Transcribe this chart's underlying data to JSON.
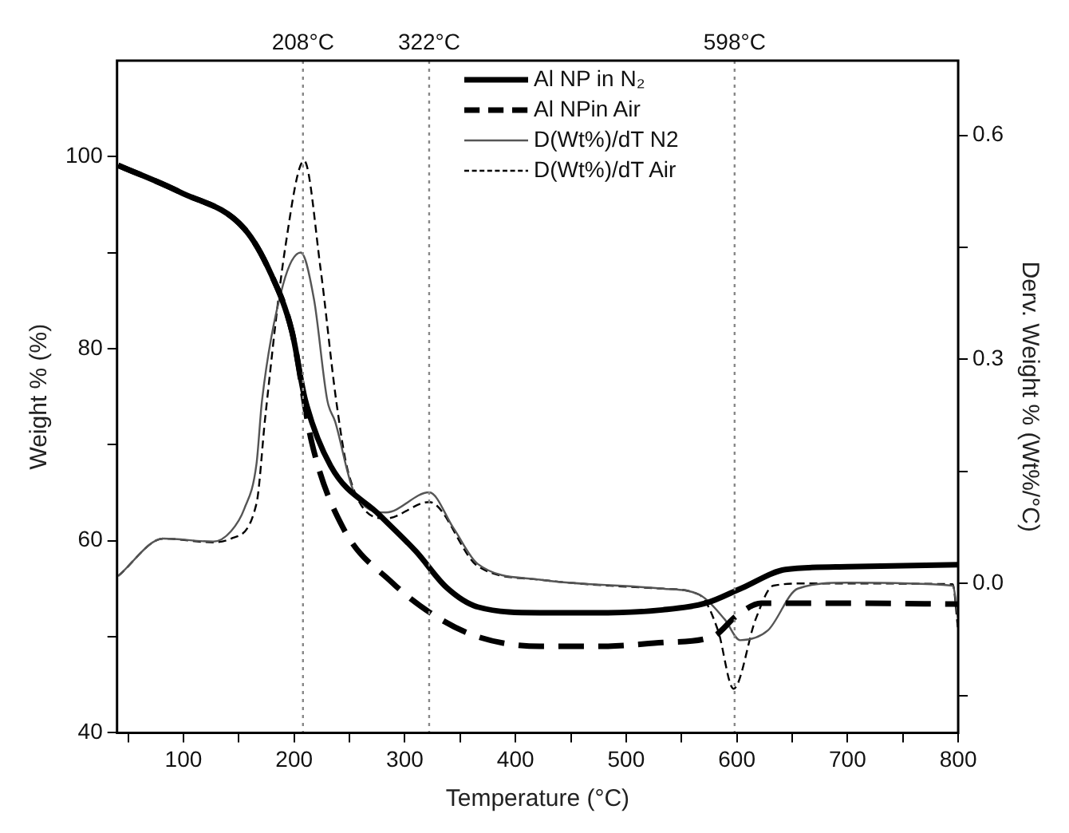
{
  "chart_data": {
    "type": "line",
    "xlabel": "Temperature (°C)",
    "ylabel": "Weight % (%)",
    "y2label": "Derv. Weight % (Wt%/°C)",
    "xlim": [
      40,
      800
    ],
    "xticks": [
      {
        "value": 50,
        "label": null
      },
      100,
      {
        "value": 150,
        "label": null
      },
      200,
      {
        "value": 250,
        "label": null
      },
      300,
      {
        "value": 350,
        "label": null
      },
      400,
      {
        "value": 450,
        "label": null
      },
      500,
      {
        "value": 550,
        "label": null
      },
      600,
      {
        "value": 650,
        "label": null
      },
      700,
      {
        "value": 750,
        "label": null
      },
      800
    ],
    "ylim": [
      40,
      110
    ],
    "yticks": [
      40,
      {
        "value": 50,
        "label": null
      },
      60,
      {
        "value": 70,
        "label": null
      },
      80,
      {
        "value": 90,
        "label": null
      },
      100
    ],
    "y2lim": [
      -0.2,
      0.7
    ],
    "y2ticks": [
      {
        "value": -0.15,
        "label": null
      },
      {
        "value": 0,
        "label": "0.0"
      },
      {
        "value": 0.15,
        "label": null
      },
      0.3,
      {
        "value": 0.45,
        "label": null
      },
      0.6
    ],
    "grid": false,
    "legend": "top right",
    "ref_lines": [
      {
        "axis": "x",
        "value": 208,
        "label": "208°C",
        "line_style": "dotted",
        "color": "#888888"
      },
      {
        "axis": "x",
        "value": 322,
        "label": "322°C",
        "line_style": "dotted",
        "color": "#888888"
      },
      {
        "axis": "x",
        "value": 598,
        "label": "598°C",
        "line_style": "dotted",
        "color": "#888888"
      }
    ],
    "series": [
      {
        "name": "Al NP in N₂",
        "color": "#000000",
        "line_style": "solid",
        "x": [
          41,
          97,
          155,
          179,
          198,
          210,
          233,
          277,
          310,
          338,
          366,
          422,
          478,
          533,
          572,
          605,
          644,
          700,
          800
        ],
        "values": [
          99.1,
          96.3,
          92.5,
          87.8,
          81.8,
          74.7,
          67.8,
          62.7,
          58.9,
          55.1,
          53.1,
          52.5,
          52.5,
          52.8,
          53.5,
          55.1,
          57.0,
          57.3,
          57.5
        ]
      },
      {
        "name": "Al NPin Air",
        "color": "#000000",
        "line_style": "dashed",
        "x": [
          41,
          97,
          155,
          179,
          198,
          216,
          244,
          288,
          327,
          366,
          422,
          478,
          533,
          578,
          600,
          622,
          700,
          800
        ],
        "values": [
          99.1,
          96.3,
          92.5,
          87.8,
          81.8,
          70.2,
          61.4,
          55.7,
          52.2,
          50.0,
          49.0,
          49.0,
          49.4,
          50.0,
          52.2,
          53.5,
          53.5,
          53.4
        ]
      },
      {
        "name": "D(Wt%)/dT N2",
        "color": "#555555",
        "line_style": "solid",
        "axis": "y2",
        "x": [
          41,
          82,
          127,
          143,
          155,
          166,
          171,
          190,
          206,
          218,
          230,
          237,
          254,
          283,
          322,
          344,
          366,
          422,
          533,
          566,
          589,
          603,
          628,
          655,
          700,
          795,
          800
        ],
        "values": [
          0.01,
          0.06,
          0.056,
          0.07,
          0.1,
          0.16,
          0.245,
          0.4,
          0.443,
          0.38,
          0.245,
          0.217,
          0.123,
          0.095,
          0.122,
          0.074,
          0.026,
          0.005,
          -0.007,
          -0.015,
          -0.048,
          -0.076,
          -0.063,
          -0.007,
          0.001,
          -0.003,
          -0.047
        ]
      },
      {
        "name": "D(Wt%)/dT Air",
        "color": "#000000",
        "line_style": "dashed",
        "axis": "y2",
        "x": [
          41,
          82,
          127,
          143,
          166,
          174,
          192,
          209,
          224,
          238,
          249,
          283,
          322,
          366,
          422,
          533,
          566,
          583,
          597,
          617,
          633,
          665,
          795,
          800
        ],
        "values": [
          0.01,
          0.06,
          0.055,
          0.06,
          0.107,
          0.224,
          0.45,
          0.566,
          0.42,
          0.245,
          0.148,
          0.087,
          0.109,
          0.023,
          0.005,
          -0.007,
          -0.015,
          -0.063,
          -0.141,
          -0.048,
          -0.003,
          0.0,
          -0.001,
          -0.063
        ]
      }
    ]
  }
}
